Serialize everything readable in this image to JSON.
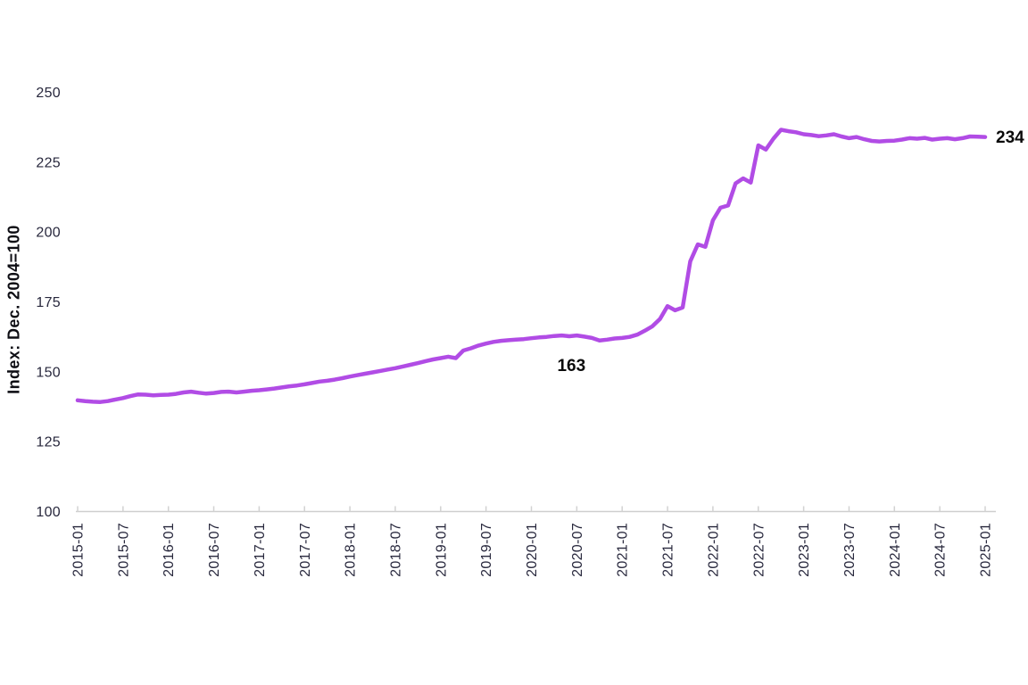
{
  "page": {
    "background": "#ffffff"
  },
  "chart_data": {
    "type": "line",
    "title": "",
    "xlabel": "",
    "ylabel": "Index: Dec. 2004=100",
    "x_start": "2015-01",
    "x_end": "2025-01",
    "frequency": "monthly",
    "x_tick_labels": [
      "2015-01",
      "2015-07",
      "2016-01",
      "2016-07",
      "2017-01",
      "2017-07",
      "2018-01",
      "2018-07",
      "2019-01",
      "2019-07",
      "2020-01",
      "2020-07",
      "2021-01",
      "2021-07",
      "2022-01",
      "2022-07",
      "2023-01",
      "2023-07",
      "2024-01",
      "2024-07",
      "2025-01"
    ],
    "y_tick_labels": [
      "100",
      "125",
      "150",
      "175",
      "200",
      "225",
      "250"
    ],
    "y_ticks": [
      100,
      125,
      150,
      175,
      200,
      225,
      250
    ],
    "ylim": [
      100,
      250
    ],
    "grid": false,
    "legend": "none",
    "series": [
      {
        "name": "rent-index",
        "color": "#b14ce5",
        "values": [
          139.8,
          139.5,
          139.3,
          139.2,
          139.5,
          140.1,
          140.6,
          141.3,
          141.9,
          141.8,
          141.6,
          141.7,
          141.8,
          142.1,
          142.6,
          142.9,
          142.5,
          142.2,
          142.4,
          142.8,
          142.9,
          142.6,
          142.9,
          143.2,
          143.4,
          143.7,
          144.0,
          144.4,
          144.8,
          145.1,
          145.5,
          146.0,
          146.5,
          146.8,
          147.2,
          147.7,
          148.3,
          148.8,
          149.3,
          149.8,
          150.3,
          150.8,
          151.3,
          151.9,
          152.5,
          153.1,
          153.8,
          154.4,
          154.9,
          155.4,
          154.9,
          157.6,
          158.4,
          159.4,
          160.1,
          160.7,
          161.1,
          161.3,
          161.5,
          161.7,
          162.0,
          162.3,
          162.5,
          162.8,
          163.0,
          162.7,
          163.0,
          162.6,
          162.1,
          161.2,
          161.5,
          161.9,
          162.1,
          162.5,
          163.3,
          164.7,
          166.3,
          168.9,
          173.5,
          172.0,
          173.0,
          189.5,
          195.6,
          194.7,
          204.2,
          208.7,
          209.5,
          217.4,
          219.2,
          217.7,
          231.0,
          229.5,
          233.4,
          236.6,
          236.1,
          235.7,
          235.0,
          234.7,
          234.3,
          234.6,
          235.0,
          234.2,
          233.6,
          234.0,
          233.2,
          232.6,
          232.4,
          232.6,
          232.7,
          233.1,
          233.6,
          233.4,
          233.7,
          233.1,
          233.4,
          233.6,
          233.2,
          233.6,
          234.2,
          234.1,
          234.0
        ]
      }
    ],
    "annotations": [
      {
        "label": "163",
        "month": "2020-07",
        "value": 163,
        "placement": "below-line"
      },
      {
        "label": "234",
        "month": "2025-01",
        "value": 234,
        "placement": "right-of-line-end"
      }
    ],
    "colors": {
      "line": "#b14ce5",
      "tick_label": "#28283d",
      "axis": "#cfcfcf",
      "annotation": "#0b0b0b",
      "y_axis_title": "#0e0e14"
    }
  }
}
